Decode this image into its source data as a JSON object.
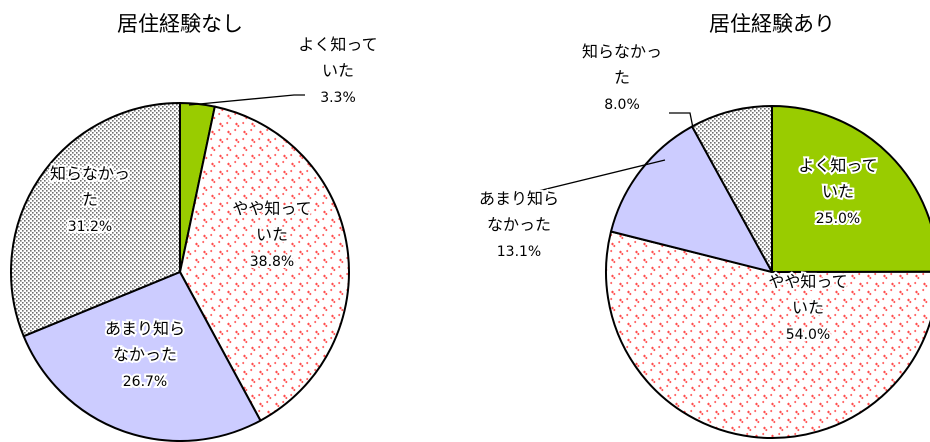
{
  "chart_data": [
    {
      "type": "pie",
      "title": "居住経験なし",
      "slices": [
        {
          "label_lines": [
            "よく知って",
            "いた"
          ],
          "value": 3.3,
          "value_text": "3.3%",
          "color": "#99cc00",
          "pattern": "solid"
        },
        {
          "label_lines": [
            "やや知って",
            "いた"
          ],
          "value": 38.8,
          "value_text": "38.8%",
          "color": "#ff4d4d",
          "pattern": "hearts"
        },
        {
          "label_lines": [
            "あまり知ら",
            "なかった"
          ],
          "value": 26.7,
          "value_text": "26.7%",
          "color": "#ccccff",
          "pattern": "solid"
        },
        {
          "label_lines": [
            "知らなかっ",
            "た"
          ],
          "value": 31.2,
          "value_text": "31.2%",
          "color": "#808080",
          "pattern": "dots"
        }
      ]
    },
    {
      "type": "pie",
      "title": "居住経験あり",
      "slices": [
        {
          "label_lines": [
            "よく知って",
            "いた"
          ],
          "value": 25.0,
          "value_text": "25.0%",
          "color": "#99cc00",
          "pattern": "solid"
        },
        {
          "label_lines": [
            "やや知って",
            "いた"
          ],
          "value": 54.0,
          "value_text": "54.0%",
          "color": "#ff4d4d",
          "pattern": "hearts"
        },
        {
          "label_lines": [
            "あまり知ら",
            "なかった"
          ],
          "value": 13.1,
          "value_text": "13.1%",
          "color": "#ccccff",
          "pattern": "solid"
        },
        {
          "label_lines": [
            "知らなかっ",
            "た"
          ],
          "value": 8.0,
          "value_text": "8.0%",
          "color": "#808080",
          "pattern": "dots"
        }
      ]
    }
  ]
}
